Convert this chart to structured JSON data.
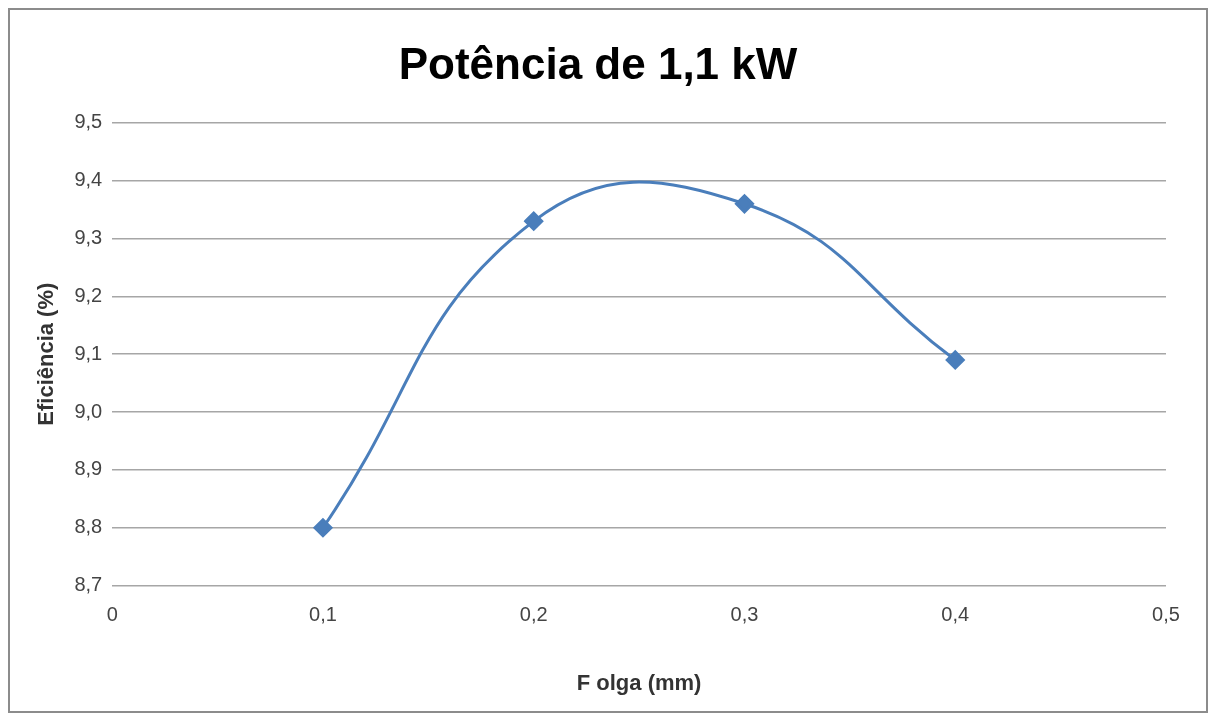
{
  "chart_data": {
    "type": "line",
    "title": "Potência de 1,1 kW",
    "xlabel": "F olga (mm)",
    "ylabel": "Eficiência (%)",
    "x": [
      0.1,
      0.2,
      0.3,
      0.4
    ],
    "series": [
      {
        "color": "#4a7ebb",
        "values": [
          8.8,
          9.33,
          9.36,
          9.09
        ]
      }
    ],
    "xlim": [
      0,
      0.5
    ],
    "xticks": [
      {
        "value": 0,
        "label": "0"
      },
      {
        "value": 0.1,
        "label": "0,1"
      },
      {
        "value": 0.2,
        "label": "0,2"
      },
      {
        "value": 0.3,
        "label": "0,3"
      },
      {
        "value": 0.4,
        "label": "0,4"
      },
      {
        "value": 0.5,
        "label": "0,5"
      }
    ],
    "ylim": [
      8.7,
      9.5
    ],
    "yticks": [
      {
        "value": 8.7,
        "label": "8,7"
      },
      {
        "value": 8.8,
        "label": "8,8"
      },
      {
        "value": 8.9,
        "label": "8,9"
      },
      {
        "value": 9.0,
        "label": "9,0"
      },
      {
        "value": 9.1,
        "label": "9,1"
      },
      {
        "value": 9.2,
        "label": "9,2"
      },
      {
        "value": 9.3,
        "label": "9,3"
      },
      {
        "value": 9.4,
        "label": "9,4"
      },
      {
        "value": 9.5,
        "label": "9,5"
      }
    ],
    "grid": "y",
    "legend": false,
    "marker": "diamond",
    "line_style": "solid"
  }
}
